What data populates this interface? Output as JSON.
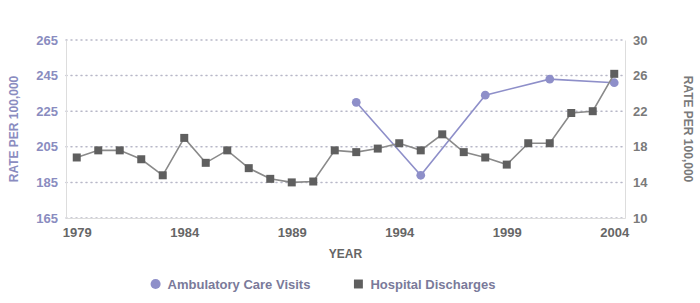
{
  "chart_data": {
    "type": "line",
    "x_label": "YEAR",
    "y_label": "RATE PER 100,000",
    "y2_label": "RATE PER 100,000",
    "x": [
      1979,
      1980,
      1981,
      1982,
      1983,
      1984,
      1985,
      1986,
      1987,
      1988,
      1989,
      1990,
      1991,
      1992,
      1993,
      1994,
      1995,
      1996,
      1997,
      1998,
      1999,
      2000,
      2001,
      2002,
      2003,
      2004
    ],
    "xlim": [
      1978.5,
      2004.5
    ],
    "xticks": [
      1979,
      1984,
      1989,
      1994,
      1999,
      2004
    ],
    "ylim": [
      165,
      265
    ],
    "yticks": [
      165,
      185,
      205,
      225,
      245,
      265
    ],
    "y2lim": [
      10,
      30
    ],
    "y2ticks": [
      10,
      14,
      18,
      22,
      26,
      30
    ],
    "grid": true,
    "legend": "bottom",
    "series": [
      {
        "name": "Ambulatory Care Visits",
        "color": "#8e8fc9",
        "marker": "circle",
        "axis": "y",
        "x": [
          1992,
          1995,
          1998,
          2001,
          2004
        ],
        "values": [
          230,
          189,
          234,
          243,
          241
        ]
      },
      {
        "name": "Hospital Discharges",
        "color": "#5f5f5f",
        "marker": "square",
        "axis": "y2",
        "values": [
          16.8,
          17.6,
          17.6,
          16.6,
          14.8,
          19.0,
          16.2,
          17.6,
          15.6,
          14.4,
          14.0,
          14.1,
          17.6,
          17.4,
          17.8,
          18.4,
          17.6,
          19.4,
          17.4,
          16.8,
          16.0,
          18.4,
          18.4,
          21.8,
          22.0,
          26.2
        ]
      }
    ]
  }
}
